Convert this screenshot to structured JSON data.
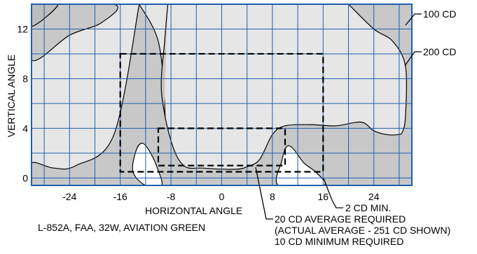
{
  "colors": {
    "background": "#ffffff",
    "plot_fill": "#e6e6e6",
    "region_100cd": "#c8c8c8",
    "grid": "#1f5fae",
    "frame": "#1f5fae",
    "outline": "#000000"
  },
  "axes": {
    "ylabel": "VERTICAL ANGLE",
    "xlabel": "HORIZONTAL ANGLE",
    "x_ticks": [
      "-24",
      "-16",
      "-8",
      "0",
      "8",
      "16",
      "24"
    ],
    "y_ticks": [
      "0",
      "4",
      "8",
      "12"
    ],
    "xlim": [
      -30,
      30
    ],
    "ylim": [
      -0.6,
      14
    ]
  },
  "labels": {
    "cd100": "100 CD",
    "cd200": "200 CD",
    "min2": "2 CD MIN.",
    "req_line1": "20 CD AVERAGE REQUIRED",
    "req_line2": "(ACTUAL AVERAGE - 251 CD SHOWN)",
    "req_line3": "10 CD MINIMUM REQUIRED",
    "caption": "L-852A, FAA, 32W, AVIATION GREEN"
  },
  "boxes": {
    "outer": {
      "x": [
        -16,
        16
      ],
      "y": [
        0.5,
        10
      ]
    },
    "inner": {
      "x": [
        -10,
        10
      ],
      "y": [
        1,
        4
      ]
    }
  },
  "contours": {
    "cd100_left": [
      [
        -30,
        12.2
      ],
      [
        -25.8,
        14
      ],
      [
        -30,
        14
      ]
    ],
    "cd100_right": [
      [
        27.5,
        14
      ],
      [
        30,
        11.5
      ],
      [
        30,
        14
      ]
    ],
    "cd200_left": [
      [
        -30,
        9.5
      ],
      [
        -24,
        11.5
      ],
      [
        -19,
        12.5
      ],
      [
        -17,
        14
      ],
      [
        -30,
        14
      ]
    ],
    "cd200_lobe_center_left": [
      [
        -13,
        14
      ],
      [
        -17,
        3.5
      ],
      [
        -23,
        1
      ],
      [
        -26.5,
        0.8
      ],
      [
        -30,
        1.2
      ],
      [
        -30,
        -0.6
      ],
      [
        -11,
        -0.6
      ],
      [
        -9.5,
        -0.6
      ],
      [
        -9,
        1.5
      ],
      [
        -9,
        6
      ],
      [
        -10,
        11
      ],
      [
        -13,
        14
      ]
    ],
    "cd200_lobe_center_right": [
      [
        -8.5,
        14
      ],
      [
        -9,
        11
      ],
      [
        -9.5,
        7
      ],
      [
        -8,
        3
      ],
      [
        -6,
        1
      ],
      [
        -3,
        0.8
      ],
      [
        2,
        0.7
      ],
      [
        4,
        0.9
      ],
      [
        6,
        1.5
      ],
      [
        8,
        3.5
      ],
      [
        10,
        4.2
      ],
      [
        14,
        4.3
      ],
      [
        18,
        4.2
      ],
      [
        22,
        4.5
      ],
      [
        24,
        3.8
      ],
      [
        26,
        3.5
      ],
      [
        27.8,
        3.5
      ],
      [
        28.5,
        3.7
      ],
      [
        29,
        5
      ],
      [
        29,
        9
      ],
      [
        27,
        11
      ],
      [
        24,
        12
      ],
      [
        20,
        14
      ]
    ],
    "white_left": [
      [
        -12,
        -0.6
      ],
      [
        -14,
        0.5
      ],
      [
        -13.5,
        2.2
      ],
      [
        -12.5,
        2.8
      ],
      [
        -11.2,
        2
      ],
      [
        -10,
        0.6
      ],
      [
        -9.5,
        -0.6
      ]
    ],
    "white_right": [
      [
        9,
        -0.6
      ],
      [
        9.5,
        1.4
      ],
      [
        10.2,
        2.5
      ],
      [
        11.2,
        2.4
      ],
      [
        13,
        1.2
      ],
      [
        15,
        0.4
      ],
      [
        16,
        -0.6
      ]
    ]
  }
}
